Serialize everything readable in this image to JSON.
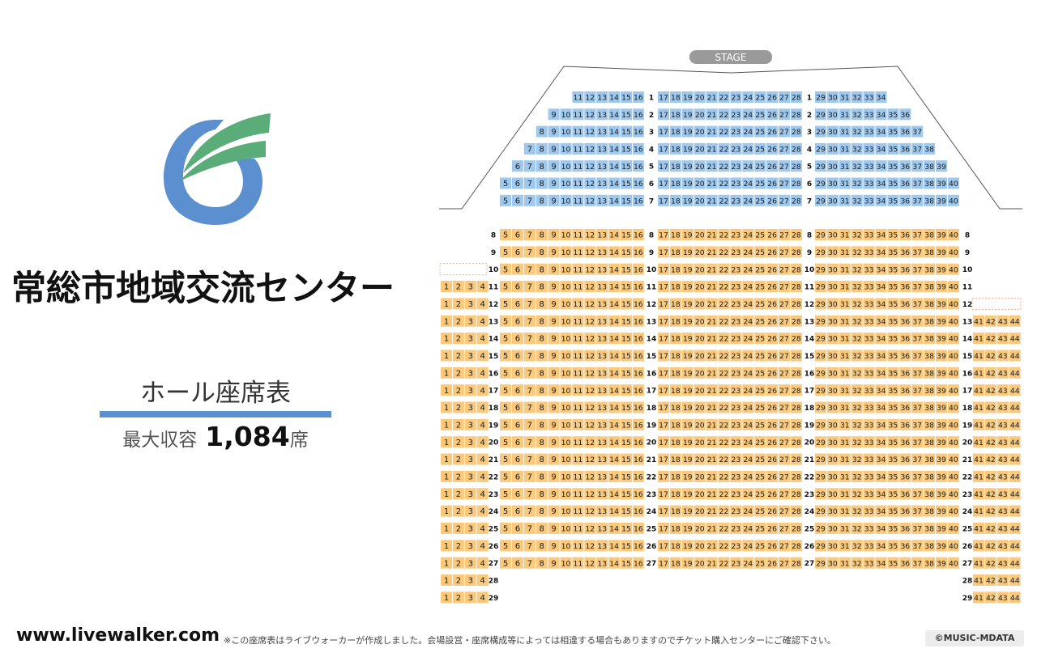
{
  "venue": {
    "name": "常総市地域交流センター",
    "hall": "ホール座席表",
    "capacity_label": "最大収容",
    "capacity_value": "1,084",
    "capacity_unit": "席"
  },
  "stage": {
    "label": "STAGE"
  },
  "colors": {
    "logo_green": "#5aac78",
    "logo_blue": "#5b8fd0",
    "seat_blue": "#9ec8ee",
    "seat_orange": "#fbc97c",
    "stage_bg": "#9a9a9a"
  },
  "seating": {
    "upper_rows": [
      {
        "row": "1",
        "left": [
          11,
          16
        ],
        "center": [
          17,
          28
        ],
        "right": [
          29,
          34
        ]
      },
      {
        "row": "2",
        "left": [
          9,
          16
        ],
        "center": [
          17,
          28
        ],
        "right": [
          29,
          36
        ]
      },
      {
        "row": "3",
        "left": [
          8,
          16
        ],
        "center": [
          17,
          28
        ],
        "right": [
          29,
          37
        ]
      },
      {
        "row": "4",
        "left": [
          7,
          16
        ],
        "center": [
          17,
          28
        ],
        "right": [
          29,
          38
        ]
      },
      {
        "row": "5",
        "left": [
          6,
          16
        ],
        "center": [
          17,
          28
        ],
        "right": [
          29,
          39
        ]
      },
      {
        "row": "6",
        "left": [
          5,
          16
        ],
        "center": [
          17,
          28
        ],
        "right": [
          29,
          40
        ]
      },
      {
        "row": "7",
        "left": [
          5,
          16
        ],
        "center": [
          17,
          28
        ],
        "right": [
          29,
          40
        ]
      }
    ],
    "lower_rows": [
      {
        "row": "8",
        "farLeft": null,
        "left": [
          5,
          16
        ],
        "center": [
          17,
          28
        ],
        "right": [
          29,
          40
        ],
        "farRight": null
      },
      {
        "row": "9",
        "farLeft": null,
        "left": [
          5,
          16
        ],
        "center": [
          17,
          28
        ],
        "right": [
          29,
          40
        ],
        "farRight": null
      },
      {
        "row": "10",
        "farLeft": "empty",
        "left": [
          5,
          16
        ],
        "center": [
          17,
          28
        ],
        "right": [
          29,
          40
        ],
        "farRight": null
      },
      {
        "row": "11",
        "farLeft": [
          1,
          4
        ],
        "left": [
          5,
          16
        ],
        "center": [
          17,
          28
        ],
        "right": [
          29,
          40
        ],
        "farRight": null
      },
      {
        "row": "12",
        "farLeft": [
          1,
          4
        ],
        "left": [
          5,
          16
        ],
        "center": [
          17,
          28
        ],
        "right": [
          29,
          40
        ],
        "farRight": "empty"
      },
      {
        "row": "13",
        "farLeft": [
          1,
          4
        ],
        "left": [
          5,
          16
        ],
        "center": [
          17,
          28
        ],
        "right": [
          29,
          40
        ],
        "farRight": [
          41,
          44
        ]
      },
      {
        "row": "14",
        "farLeft": [
          1,
          4
        ],
        "left": [
          5,
          16
        ],
        "center": [
          17,
          28
        ],
        "right": [
          29,
          40
        ],
        "farRight": [
          41,
          44
        ]
      },
      {
        "row": "15",
        "farLeft": [
          1,
          4
        ],
        "left": [
          5,
          16
        ],
        "center": [
          17,
          28
        ],
        "right": [
          29,
          40
        ],
        "farRight": [
          41,
          44
        ]
      },
      {
        "row": "16",
        "farLeft": [
          1,
          4
        ],
        "left": [
          5,
          16
        ],
        "center": [
          17,
          28
        ],
        "right": [
          29,
          40
        ],
        "farRight": [
          41,
          44
        ]
      },
      {
        "row": "17",
        "farLeft": [
          1,
          4
        ],
        "left": [
          5,
          16
        ],
        "center": [
          17,
          28
        ],
        "right": [
          29,
          40
        ],
        "farRight": [
          41,
          44
        ]
      },
      {
        "row": "18",
        "farLeft": [
          1,
          4
        ],
        "left": [
          5,
          16
        ],
        "center": [
          17,
          28
        ],
        "right": [
          29,
          40
        ],
        "farRight": [
          41,
          44
        ]
      },
      {
        "row": "19",
        "farLeft": [
          1,
          4
        ],
        "left": [
          5,
          16
        ],
        "center": [
          17,
          28
        ],
        "right": [
          29,
          40
        ],
        "farRight": [
          41,
          44
        ]
      },
      {
        "row": "20",
        "farLeft": [
          1,
          4
        ],
        "left": [
          5,
          16
        ],
        "center": [
          17,
          28
        ],
        "right": [
          29,
          40
        ],
        "farRight": [
          41,
          44
        ]
      },
      {
        "row": "21",
        "farLeft": [
          1,
          4
        ],
        "left": [
          5,
          16
        ],
        "center": [
          17,
          28
        ],
        "right": [
          29,
          40
        ],
        "farRight": [
          41,
          44
        ]
      },
      {
        "row": "22",
        "farLeft": [
          1,
          4
        ],
        "left": [
          5,
          16
        ],
        "center": [
          17,
          28
        ],
        "right": [
          29,
          40
        ],
        "farRight": [
          41,
          44
        ]
      },
      {
        "row": "23",
        "farLeft": [
          1,
          4
        ],
        "left": [
          5,
          16
        ],
        "center": [
          17,
          28
        ],
        "right": [
          29,
          40
        ],
        "farRight": [
          41,
          44
        ]
      },
      {
        "row": "24",
        "farLeft": [
          1,
          4
        ],
        "left": [
          5,
          16
        ],
        "center": [
          17,
          28
        ],
        "right": [
          29,
          40
        ],
        "farRight": [
          41,
          44
        ]
      },
      {
        "row": "25",
        "farLeft": [
          1,
          4
        ],
        "left": [
          5,
          16
        ],
        "center": [
          17,
          28
        ],
        "right": [
          29,
          40
        ],
        "farRight": [
          41,
          44
        ]
      },
      {
        "row": "26",
        "farLeft": [
          1,
          4
        ],
        "left": [
          5,
          16
        ],
        "center": [
          17,
          28
        ],
        "right": [
          29,
          40
        ],
        "farRight": [
          41,
          44
        ]
      },
      {
        "row": "27",
        "farLeft": [
          1,
          4
        ],
        "left": [
          5,
          16
        ],
        "center": [
          17,
          28
        ],
        "right": [
          29,
          40
        ],
        "farRight": [
          41,
          44
        ]
      },
      {
        "row": "28",
        "farLeft": [
          1,
          4
        ],
        "left": null,
        "center": null,
        "right": null,
        "farRight": [
          41,
          44
        ]
      },
      {
        "row": "29",
        "farLeft": [
          1,
          4
        ],
        "left": null,
        "center": null,
        "right": null,
        "farRight": [
          41,
          44
        ]
      }
    ]
  },
  "footer": {
    "url": "www.livewalker.com",
    "note": "※この座席表はライブウォーカーが作成しました。会場設営・座席構成等によっては相違する場合もありますのでチケット購入センターにご確認下さい。",
    "copyright": "©MUSIC-MDATA"
  }
}
